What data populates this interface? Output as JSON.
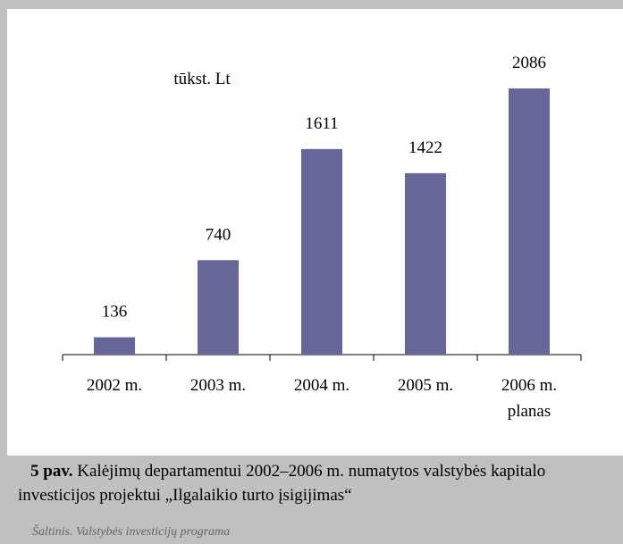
{
  "chart_data": {
    "type": "bar",
    "unit_label": "tūkst. Lt",
    "categories": [
      "2002 m.",
      "2003 m.",
      "2004 m.",
      "2005 m.",
      "2006 m. planas"
    ],
    "values": [
      136,
      740,
      1611,
      1422,
      2086
    ],
    "color": "#666699"
  },
  "caption": {
    "label": "5 pav.",
    "text": "Kalėjimų departamentui 2002–2006 m. numatytos valstybės kapitalo investicijos projektui „Ilgalaikio turto įsigijimas“"
  },
  "source": "Šaltinis. Valstybės investicijų programa"
}
